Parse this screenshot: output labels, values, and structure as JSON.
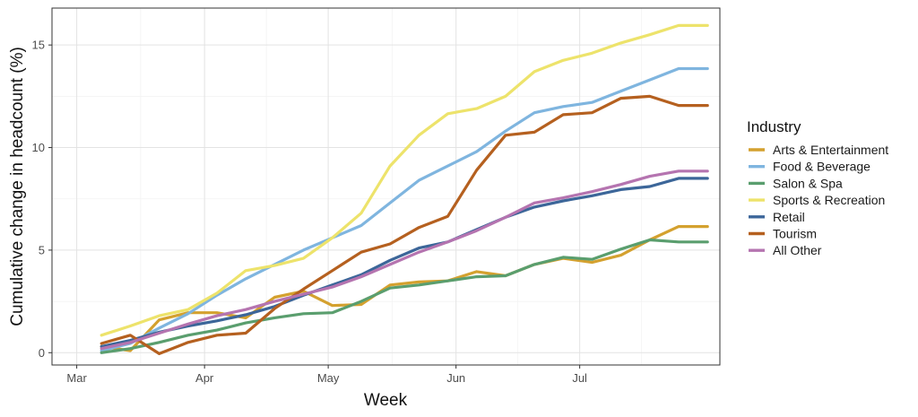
{
  "chart_data": {
    "type": "line",
    "xlabel": "Week",
    "ylabel": "Cumulative change in headcount (%)",
    "ylim": [
      -0.6,
      16.8
    ],
    "yticks": [
      0,
      5,
      10,
      15
    ],
    "xlim": [
      "2020-02-24",
      "2020-08-04"
    ],
    "xticks": [
      {
        "date": "2020-03-01",
        "label": "Mar"
      },
      {
        "date": "2020-04-01",
        "label": "Apr"
      },
      {
        "date": "2020-05-01",
        "label": "May"
      },
      {
        "date": "2020-06-01",
        "label": "Jun"
      },
      {
        "date": "2020-07-01",
        "label": "Jul"
      }
    ],
    "grid": true,
    "legend_position": "right",
    "legend_title": "Industry",
    "x": [
      "2020-03-07",
      "2020-03-14",
      "2020-03-21",
      "2020-03-28",
      "2020-04-04",
      "2020-04-11",
      "2020-04-18",
      "2020-04-25",
      "2020-05-02",
      "2020-05-09",
      "2020-05-16",
      "2020-05-23",
      "2020-05-30",
      "2020-06-06",
      "2020-06-13",
      "2020-06-20",
      "2020-06-27",
      "2020-07-04",
      "2020-07-11",
      "2020-07-18",
      "2020-07-25",
      "2020-08-01"
    ],
    "series": [
      {
        "name": "Arts & Entertainment",
        "color": "#D4A12F",
        "values": [
          0.3,
          0.1,
          1.6,
          1.95,
          1.95,
          1.7,
          2.7,
          3.0,
          2.3,
          2.35,
          3.3,
          3.45,
          3.5,
          3.95,
          3.75,
          4.3,
          4.6,
          4.4,
          4.75,
          5.5,
          6.15,
          6.15
        ]
      },
      {
        "name": "Food & Beverage",
        "color": "#7FB5DF",
        "values": [
          0.1,
          0.45,
          1.2,
          1.9,
          2.8,
          3.6,
          4.3,
          5.0,
          5.6,
          6.2,
          7.3,
          8.4,
          9.1,
          9.8,
          10.8,
          11.7,
          12.0,
          12.2,
          12.75,
          13.3,
          13.85,
          13.85
        ]
      },
      {
        "name": "Salon & Spa",
        "color": "#5A9E6E",
        "values": [
          0.0,
          0.2,
          0.5,
          0.85,
          1.1,
          1.45,
          1.7,
          1.9,
          1.95,
          2.5,
          3.15,
          3.3,
          3.5,
          3.7,
          3.75,
          4.3,
          4.65,
          4.55,
          5.05,
          5.5,
          5.4,
          5.4
        ]
      },
      {
        "name": "Sports & Recreation",
        "color": "#EDE36B",
        "values": [
          0.85,
          1.3,
          1.8,
          2.1,
          2.9,
          4.0,
          4.25,
          4.6,
          5.6,
          6.8,
          9.1,
          10.6,
          11.65,
          11.9,
          12.5,
          13.7,
          14.25,
          14.6,
          15.1,
          15.5,
          15.95,
          15.95
        ]
      },
      {
        "name": "Retail",
        "color": "#3C6699",
        "values": [
          0.3,
          0.6,
          1.0,
          1.3,
          1.55,
          1.85,
          2.25,
          2.8,
          3.3,
          3.8,
          4.5,
          5.1,
          5.4,
          6.0,
          6.6,
          7.1,
          7.4,
          7.65,
          7.95,
          8.1,
          8.5,
          8.5
        ]
      },
      {
        "name": "Tourism",
        "color": "#B5601F",
        "values": [
          0.45,
          0.85,
          -0.05,
          0.5,
          0.85,
          0.95,
          2.15,
          3.1,
          4.0,
          4.9,
          5.3,
          6.1,
          6.65,
          8.9,
          10.6,
          10.75,
          11.6,
          11.7,
          12.4,
          12.5,
          12.05,
          12.05
        ]
      },
      {
        "name": "All Other",
        "color": "#B574B0",
        "values": [
          0.2,
          0.5,
          0.95,
          1.4,
          1.8,
          2.1,
          2.5,
          2.85,
          3.2,
          3.7,
          4.3,
          4.9,
          5.4,
          5.95,
          6.6,
          7.3,
          7.55,
          7.85,
          8.2,
          8.6,
          8.85,
          8.85
        ]
      }
    ]
  }
}
